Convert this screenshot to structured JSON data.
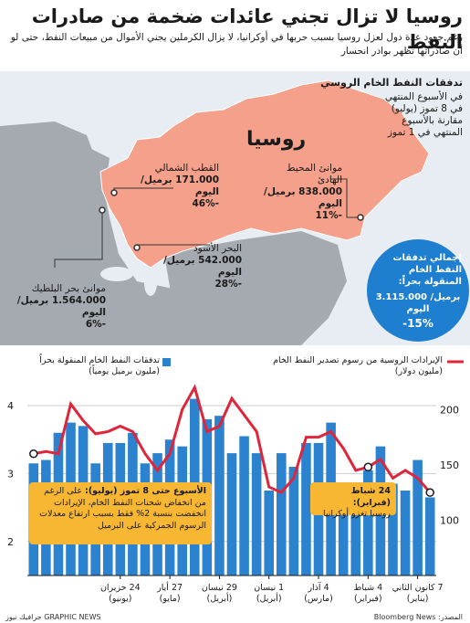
{
  "headline": "روسيا لا تزال تجني عائدات ضخمة من صادرات النفط",
  "subhead": "رغم جهود عدة دول لعزل روسيا بسبب حربها في أوكرانيا، لا يزال الكرملين يجني الأموال من مبيعات النفط، حتى لو أن صادراتها تظهر بوادر انحسار",
  "map": {
    "legend_title": "تدفقات النفط الخام الروسي",
    "legend_body": "في الأسبوع المنتهي في 8 تموز (يوليو) مقارنة بالأسبوع المنتهي في 1 تموز",
    "country_label": "روسيا",
    "ports": [
      {
        "name": "موانئ المحيط الهادئ",
        "volume": "838.000 برميل/اليوم",
        "change": "-11%"
      },
      {
        "name": "القطب الشمالي",
        "volume": "171.000 برميل/اليوم",
        "change": "-46%"
      },
      {
        "name": "البحر الأسود",
        "volume": "542.000 برميل/اليوم",
        "change": "-28%"
      },
      {
        "name": "موانئ بحر البلطيك",
        "volume": "1.564.000 برميل/اليوم",
        "change": "-6%"
      }
    ],
    "total": {
      "title": "إجمالي تدفقات النفط الخام المنقولة بحراً:",
      "volume": "3.115.000 برميل/اليوم",
      "change": "-15%"
    },
    "colors": {
      "russia": "#f4a08a",
      "land": "#a4aab0",
      "sea": "#e7edf2",
      "accent": "#1e7fd0"
    }
  },
  "chart_data": {
    "type": "bar",
    "bar_legend": "تدفقات النفط الخام المنقولة بحراً (مليون برميل يومياً)",
    "line_legend": "الإيرادات الروسية من رسوم تصدير النفط الخام (مليون دولار)",
    "left_axis": {
      "ticks": [
        2,
        3,
        4
      ],
      "ylim": [
        1.5,
        4.35
      ]
    },
    "right_axis": {
      "ticks": [
        100,
        150,
        200
      ],
      "ylim": [
        50,
        225
      ]
    },
    "x_ticks": [
      {
        "index": 1,
        "label": "7 كانون الثاني",
        "sub": "(يناير)"
      },
      {
        "index": 5,
        "label": "4 شباط",
        "sub": "(فبراير)"
      },
      {
        "index": 9,
        "label": "4 آذار",
        "sub": "(مارس)"
      },
      {
        "index": 13,
        "label": "1 نيسان",
        "sub": "(أبريل)"
      },
      {
        "index": 17,
        "label": "29 نيسان",
        "sub": "(أبريل)"
      },
      {
        "index": 21,
        "label": "27 أيار",
        "sub": "(مايو)"
      },
      {
        "index": 25,
        "label": "24 حزيران",
        "sub": "(يونيو)"
      }
    ],
    "bars": [
      2.65,
      3.2,
      2.75,
      2.85,
      3.4,
      3.05,
      2.75,
      2.85,
      3.75,
      3.45,
      3.45,
      3.1,
      3.3,
      2.75,
      3.3,
      3.55,
      3.3,
      3.85,
      3.8,
      4.1,
      3.4,
      3.5,
      3.3,
      3.15,
      3.6,
      3.45,
      3.45,
      3.15,
      3.7,
      3.75,
      3.6,
      3.2,
      3.15
    ],
    "line": [
      125,
      138,
      145,
      138,
      155,
      148,
      145,
      165,
      180,
      175,
      175,
      138,
      125,
      130,
      180,
      195,
      210,
      185,
      180,
      220,
      200,
      160,
      145,
      160,
      180,
      185,
      180,
      178,
      190,
      205,
      160,
      162,
      160
    ],
    "line_color": "#e0253a",
    "bar_color": "#2b83cf",
    "annotations": [
      {
        "title": "الأسبوع حتى 8 تموز (يوليو):",
        "body": "على الرغم من انخفاض شحنات النفط الخام، الإيرادات انخفضت بنسبة 2% فقط بسبب ارتفاع معدلات الرسوم الجمركية على البرميل"
      },
      {
        "title": "24 شباط (فبراير):",
        "body": "روسيا تغزو أوكرانيا"
      }
    ]
  },
  "watermark": "GRAPHIC NEWS",
  "footer": {
    "source": "المصدر: Bloomberg News",
    "credit": "جرافيك نيوز GRAPHIC NEWS"
  }
}
